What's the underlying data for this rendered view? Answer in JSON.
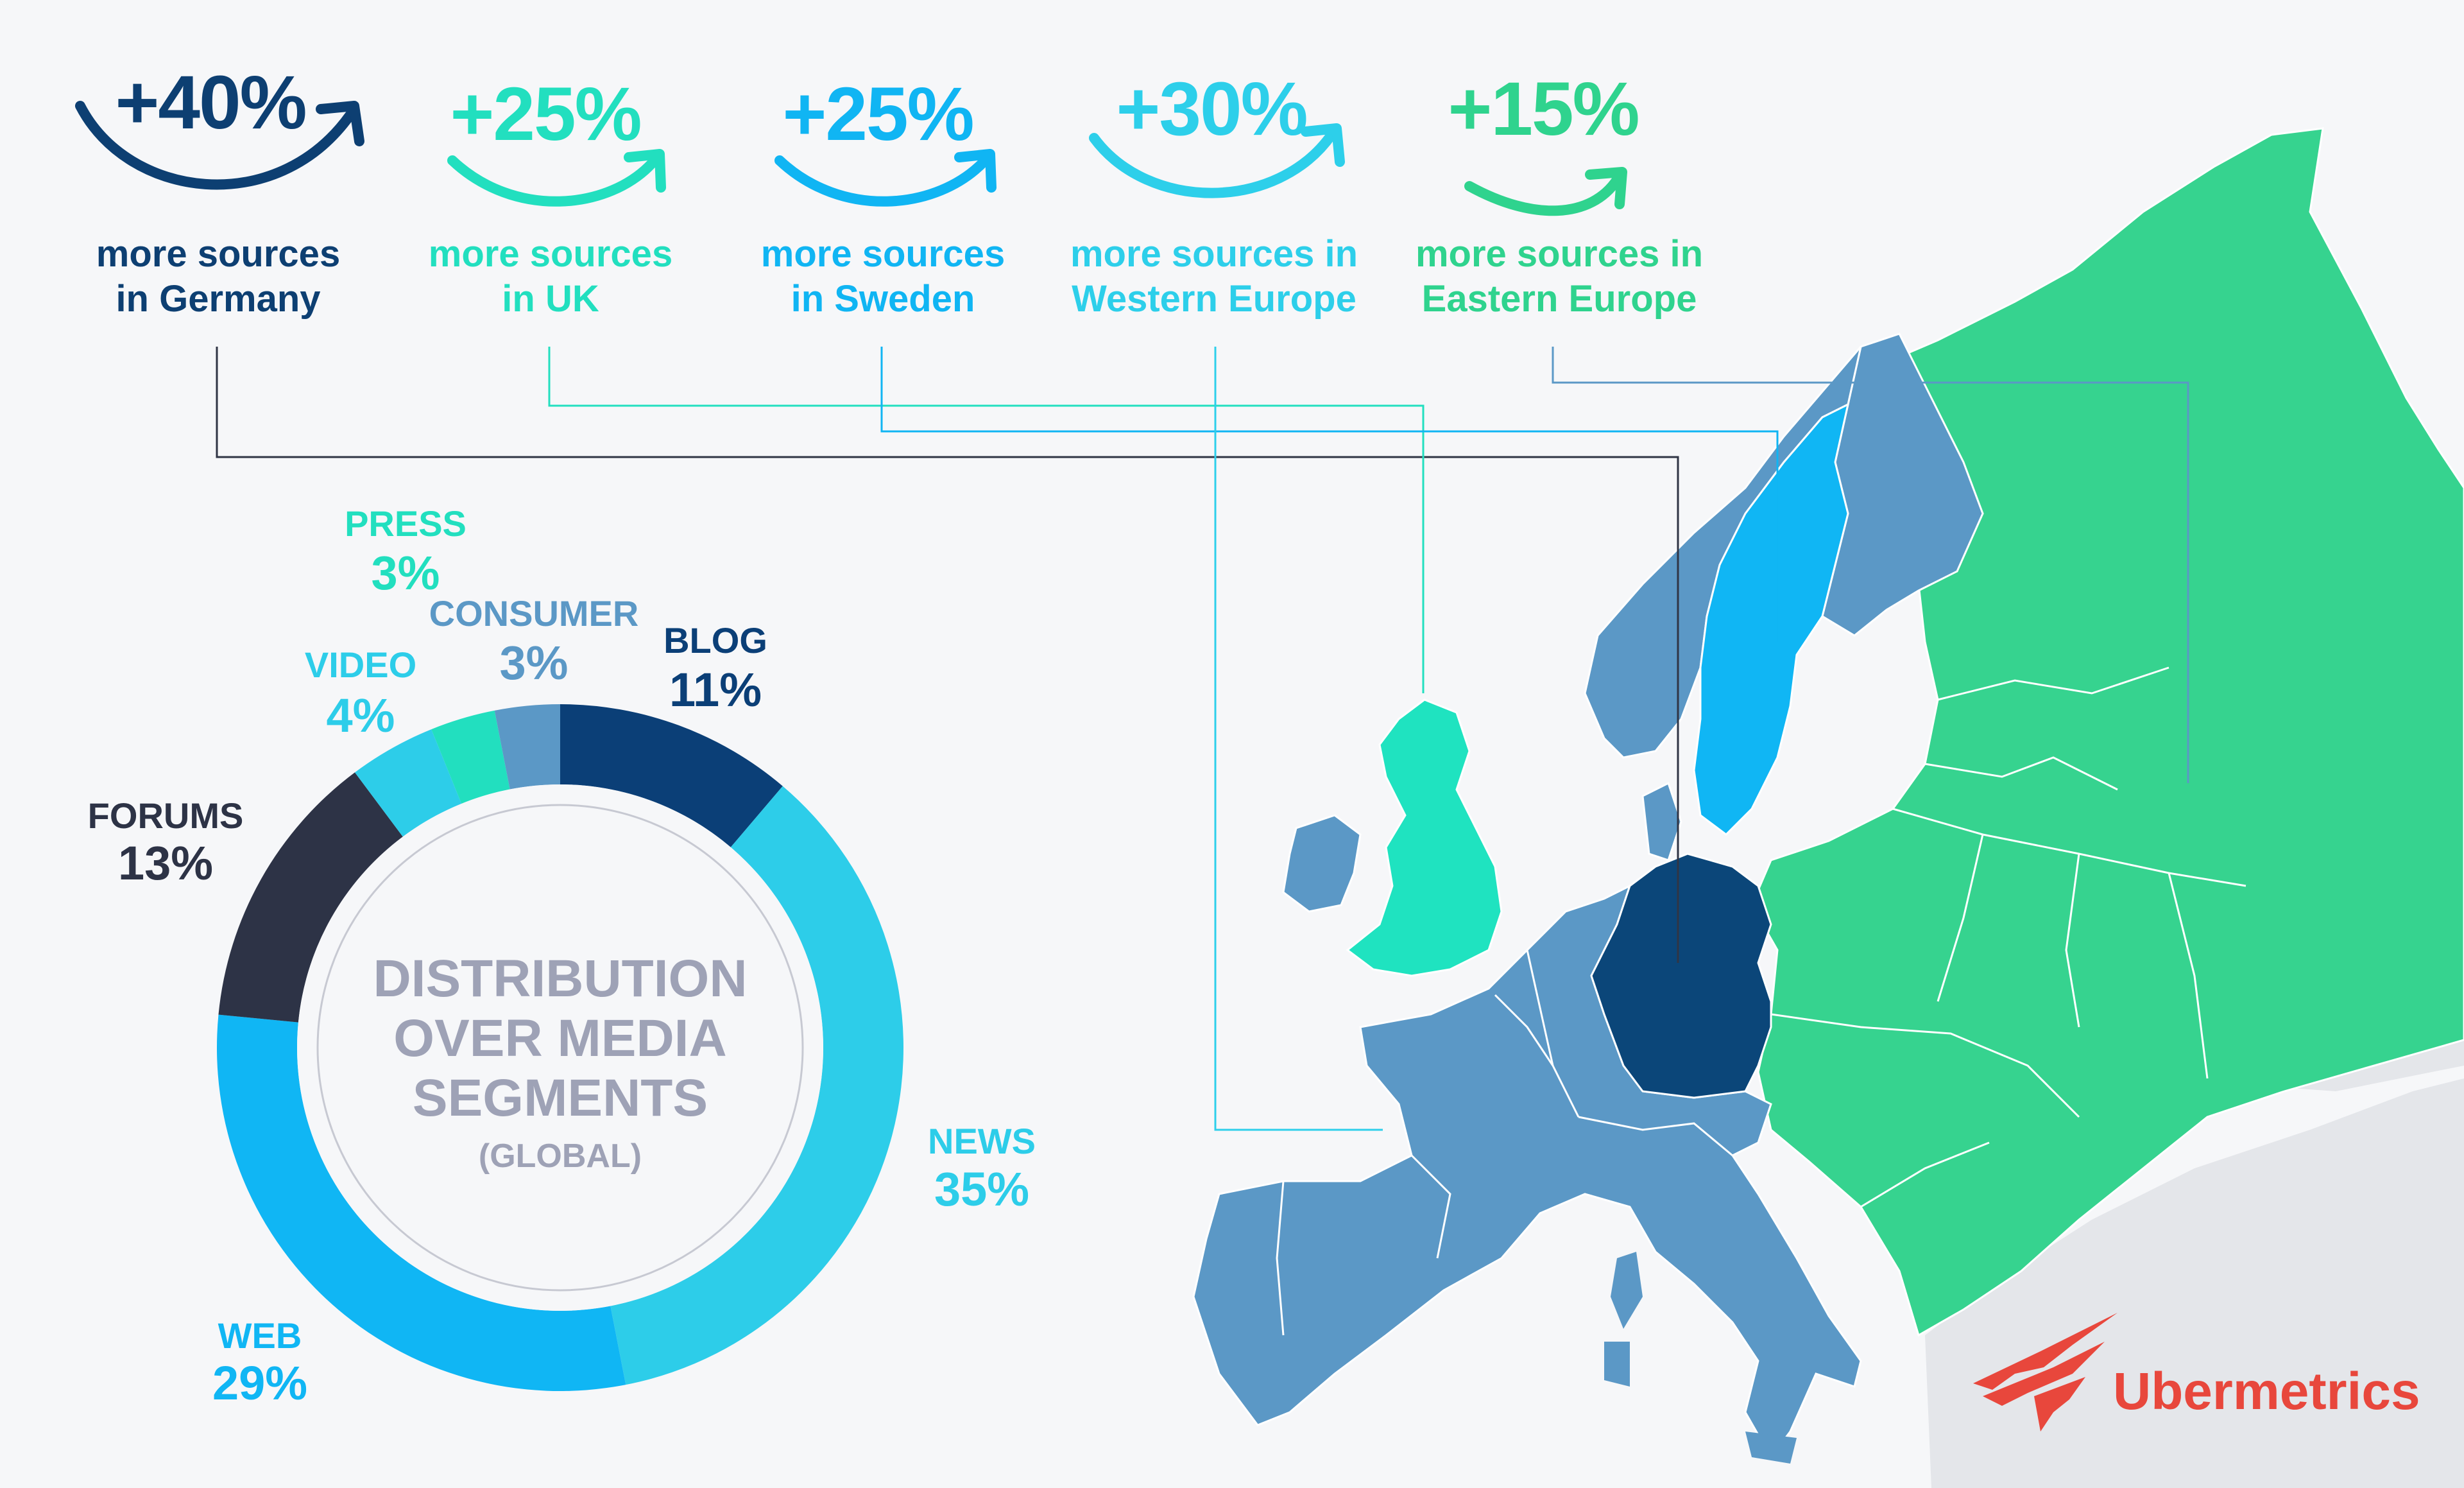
{
  "stats": [
    {
      "pct": "+40%",
      "line1": "more sources",
      "line2": "in Germany",
      "color": "#0d3f72",
      "region": "germany"
    },
    {
      "pct": "+25%",
      "line1": "more sources",
      "line2": "in UK",
      "color": "#22dfbf",
      "region": "uk"
    },
    {
      "pct": "+25%",
      "line1": "more sources",
      "line2": "in Sweden",
      "color": "#10b5f3",
      "region": "sweden"
    },
    {
      "pct": "+30%",
      "line1": "more sources in",
      "line2": "Western Europe",
      "color": "#2dcfea",
      "region": "western-europe"
    },
    {
      "pct": "+15%",
      "line1": "more sources in",
      "line2": "Eastern Europe",
      "color": "#2fd38e",
      "region": "eastern-europe"
    }
  ],
  "donut": {
    "center_title": [
      "DISTRIBUTION",
      "OVER MEDIA",
      "SEGMENTS"
    ],
    "center_subtitle": "(GLOBAL)"
  },
  "chart_data": {
    "type": "pie",
    "variant": "donut",
    "start": "12 o'clock",
    "direction": "clockwise",
    "series": [
      {
        "name": "BLOG",
        "label": "11%",
        "value": 11,
        "color": "#0b3f77"
      },
      {
        "name": "NEWS",
        "label": "35%",
        "value": 35,
        "color": "#2dcde9"
      },
      {
        "name": "WEB",
        "label": "29%",
        "value": 29,
        "color": "#10b6f4"
      },
      {
        "name": "FORUMS",
        "label": "13%",
        "value": 13,
        "color": "#2d3346"
      },
      {
        "name": "VIDEO",
        "label": "4%",
        "value": 4,
        "color": "#2dcde9"
      },
      {
        "name": "PRESS",
        "label": "3%",
        "value": 3,
        "color": "#22dfbf"
      },
      {
        "name": "CONSUMER",
        "label": "3%",
        "value": 3,
        "color": "#5b98c6"
      }
    ]
  },
  "map_colors": {
    "germany": "#0b4679",
    "western_europe": "#5b98c6",
    "sweden": "#10b6f4",
    "uk": "#1fe3c0",
    "eastern_europe": "#36d38f",
    "other": "#e4e6ea"
  },
  "brand": {
    "name": "Ubermetrics",
    "color": "#e8473c"
  }
}
